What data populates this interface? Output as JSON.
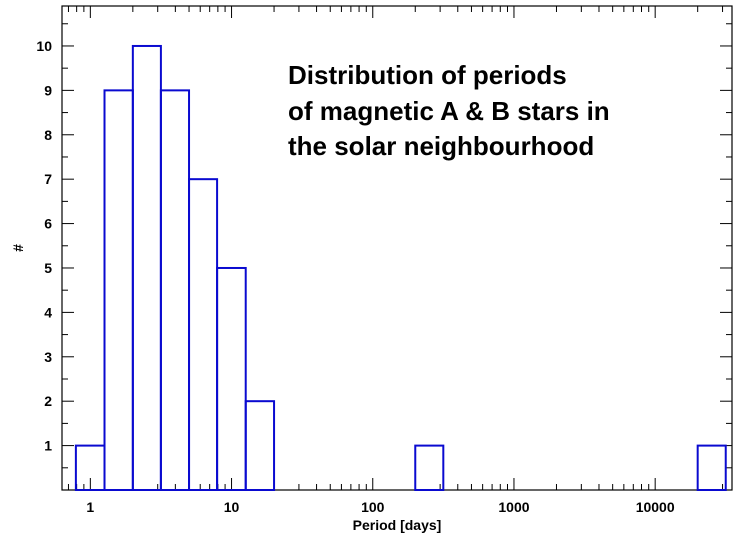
{
  "chart_data": {
    "type": "bar",
    "subtype": "histogram",
    "xscale": "log",
    "xlabel": "Period [days]",
    "ylabel": "#",
    "xlim": [
      0.63,
      35000
    ],
    "ylim": [
      0,
      10.9
    ],
    "xticks": [
      {
        "value": 1,
        "label": "1"
      },
      {
        "value": 10,
        "label": "10"
      },
      {
        "value": 100,
        "label": "100"
      },
      {
        "value": 1000,
        "label": "1000"
      },
      {
        "value": 10000,
        "label": "10000"
      }
    ],
    "yticks": [
      {
        "value": 1,
        "label": "1"
      },
      {
        "value": 2,
        "label": "2"
      },
      {
        "value": 3,
        "label": "3"
      },
      {
        "value": 4,
        "label": "4"
      },
      {
        "value": 5,
        "label": "5"
      },
      {
        "value": 6,
        "label": "6"
      },
      {
        "value": 7,
        "label": "7"
      },
      {
        "value": 8,
        "label": "8"
      },
      {
        "value": 9,
        "label": "9"
      },
      {
        "value": 10,
        "label": "10"
      }
    ],
    "bins": [
      {
        "x0": 0.79,
        "x1": 1.26,
        "count": 1
      },
      {
        "x0": 1.26,
        "x1": 2.0,
        "count": 9
      },
      {
        "x0": 2.0,
        "x1": 3.16,
        "count": 10
      },
      {
        "x0": 3.16,
        "x1": 5.0,
        "count": 9
      },
      {
        "x0": 5.0,
        "x1": 7.9,
        "count": 7
      },
      {
        "x0": 7.9,
        "x1": 12.6,
        "count": 5
      },
      {
        "x0": 12.6,
        "x1": 20.0,
        "count": 2
      },
      {
        "x0": 200,
        "x1": 316,
        "count": 1
      },
      {
        "x0": 20000,
        "x1": 31600,
        "count": 1
      }
    ],
    "annotation": [
      "Distribution of periods",
      "of magnetic A & B stars in",
      "the solar neighbourhood"
    ],
    "grid": false,
    "colors": {
      "bars": "#0a0ad0",
      "axes": "#000000"
    }
  }
}
